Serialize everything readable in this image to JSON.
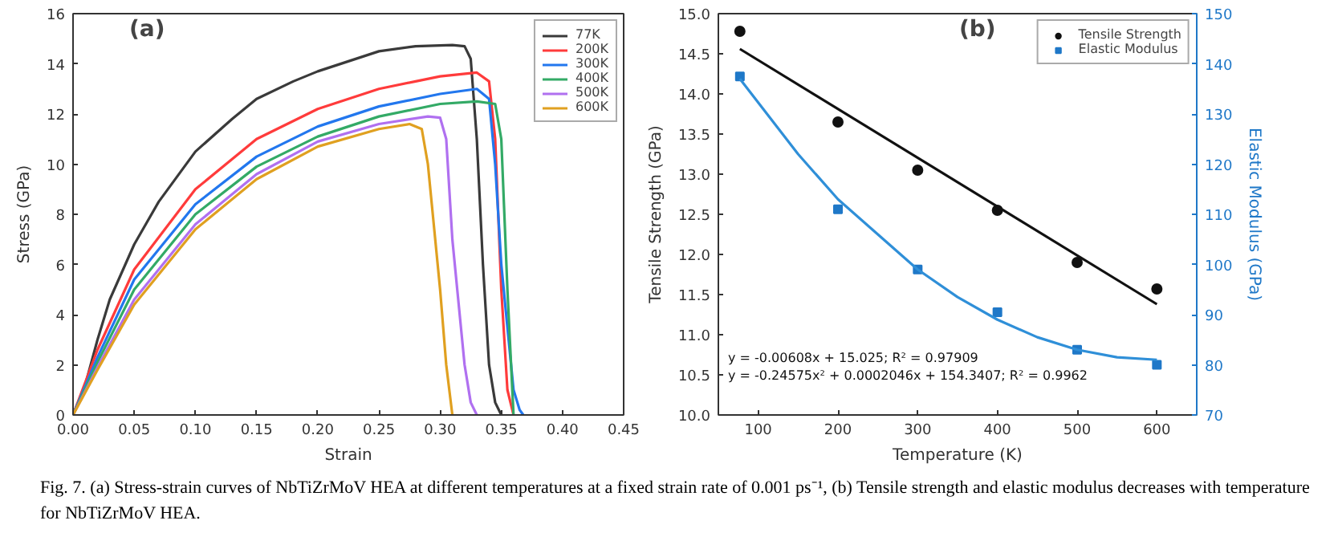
{
  "chart_data": [
    {
      "type": "line",
      "title": "(a)",
      "xlabel": "Strain",
      "ylabel": "Stress (GPa)",
      "xlim": [
        0,
        0.45
      ],
      "ylim": [
        0,
        16
      ],
      "xticks": [
        {
          "value": 0,
          "label": "0.00"
        },
        {
          "value": 0.05,
          "label": "0.05"
        },
        {
          "value": 0.1,
          "label": "0.10"
        },
        {
          "value": 0.15,
          "label": "0.15"
        },
        {
          "value": 0.2,
          "label": "0.20"
        },
        {
          "value": 0.25,
          "label": "0.25"
        },
        {
          "value": 0.3,
          "label": "0.30"
        },
        {
          "value": 0.35,
          "label": "0.35"
        },
        {
          "value": 0.4,
          "label": "0.40"
        },
        {
          "value": 0.45,
          "label": "0.45"
        }
      ],
      "yticks": [
        0,
        2,
        4,
        6,
        8,
        10,
        12,
        14,
        16
      ],
      "grid": false,
      "legend": "top right",
      "line_style": "solid",
      "marker": "none",
      "series": [
        {
          "name": "77K",
          "color": "#3a3a3a",
          "x": [
            0,
            0.01,
            0.02,
            0.03,
            0.05,
            0.07,
            0.1,
            0.13,
            0.15,
            0.18,
            0.2,
            0.25,
            0.28,
            0.31,
            0.32,
            0.325,
            0.33,
            0.335,
            0.34,
            0.345,
            0.35
          ],
          "values": [
            0,
            1.2,
            3.0,
            4.6,
            6.8,
            8.5,
            10.5,
            11.8,
            12.6,
            13.3,
            13.7,
            14.5,
            14.7,
            14.75,
            14.7,
            14.2,
            11,
            6,
            2,
            0.5,
            0
          ]
        },
        {
          "name": "200K",
          "color": "#ff3b3b",
          "x": [
            0,
            0.02,
            0.05,
            0.1,
            0.15,
            0.2,
            0.25,
            0.28,
            0.3,
            0.33,
            0.34,
            0.345,
            0.35,
            0.355,
            0.36
          ],
          "values": [
            0,
            2.6,
            5.8,
            9.0,
            11,
            12.2,
            13.0,
            13.3,
            13.5,
            13.65,
            13.3,
            11,
            5,
            1,
            0
          ]
        },
        {
          "name": "300K",
          "color": "#2277ee",
          "x": [
            0,
            0.02,
            0.05,
            0.1,
            0.15,
            0.2,
            0.25,
            0.3,
            0.33,
            0.34,
            0.345,
            0.35,
            0.36,
            0.365,
            0.368
          ],
          "values": [
            0,
            2.3,
            5.4,
            8.4,
            10.3,
            11.5,
            12.3,
            12.8,
            13.0,
            12.6,
            10,
            6,
            1,
            0.2,
            0
          ]
        },
        {
          "name": "400K",
          "color": "#33aa66",
          "x": [
            0,
            0.02,
            0.05,
            0.1,
            0.15,
            0.2,
            0.25,
            0.3,
            0.33,
            0.345,
            0.35,
            0.355,
            0.36
          ],
          "values": [
            0,
            2.1,
            5.0,
            8.0,
            9.9,
            11.1,
            11.9,
            12.4,
            12.5,
            12.4,
            11,
            5,
            0
          ]
        },
        {
          "name": "500K",
          "color": "#b070f0",
          "x": [
            0,
            0.02,
            0.05,
            0.1,
            0.15,
            0.2,
            0.25,
            0.29,
            0.3,
            0.305,
            0.31,
            0.32,
            0.325,
            0.33
          ],
          "values": [
            0,
            1.9,
            4.6,
            7.6,
            9.6,
            10.9,
            11.6,
            11.9,
            11.85,
            11,
            7,
            2,
            0.5,
            0
          ]
        },
        {
          "name": "600K",
          "color": "#e0a020",
          "x": [
            0,
            0.02,
            0.05,
            0.1,
            0.15,
            0.2,
            0.25,
            0.275,
            0.285,
            0.29,
            0.3,
            0.305,
            0.31
          ],
          "values": [
            0,
            1.8,
            4.4,
            7.4,
            9.4,
            10.7,
            11.4,
            11.6,
            11.4,
            10,
            5,
            2,
            0
          ]
        }
      ]
    },
    {
      "type": "scatter",
      "title": "(b)",
      "xlabel": "Temperature (K)",
      "ylabel": "Tensile Strength (GPa)",
      "y2label": "Elastic Modulus (GPa)",
      "xlim": [
        50,
        650
      ],
      "xticks": [
        100,
        200,
        300,
        400,
        500,
        600
      ],
      "ylim": [
        10,
        15
      ],
      "yticks": [
        {
          "value": 10,
          "label": "10.0"
        },
        {
          "value": 10.5,
          "label": "10.5"
        },
        {
          "value": 11,
          "label": "11.0"
        },
        {
          "value": 11.5,
          "label": "11.5"
        },
        {
          "value": 12,
          "label": "12.0"
        },
        {
          "value": 12.5,
          "label": "12.5"
        },
        {
          "value": 13,
          "label": "13.0"
        },
        {
          "value": 13.5,
          "label": "13.5"
        },
        {
          "value": 14,
          "label": "14.0"
        },
        {
          "value": 14.5,
          "label": "14.5"
        },
        {
          "value": 15,
          "label": "15.0"
        }
      ],
      "y2lim": [
        70,
        150
      ],
      "y2ticks": [
        70,
        80,
        90,
        100,
        110,
        120,
        130,
        140,
        150
      ],
      "grid": false,
      "legend": "top right",
      "annotations": [
        "y = -0.00608x + 15.025; R² = 0.97909",
        "y = -0.24575x² + 0.0002046x + 154.3407; R² = 0.9962",
        "Fig. 7. (a) Stress-strain curves of NbTiZrMoV HEA at different temperatures at a fixed strain rate of 0.001 ps⁻¹, (b) Tensile strength and elastic modulus decreases with temperature for NbTiZrMoV HEA."
      ],
      "series": [
        {
          "name": "Tensile Strength",
          "type": "scatter",
          "marker": "circle",
          "color": "#111111",
          "x": [
            77,
            200,
            300,
            400,
            500,
            600
          ],
          "values": [
            14.78,
            13.65,
            13.05,
            12.55,
            11.9,
            11.57
          ]
        },
        {
          "name": "Elastic Modulus",
          "type": "scatter",
          "marker": "square",
          "axis": "y2",
          "color": "#1f78c8",
          "x": [
            77,
            200,
            300,
            400,
            500,
            600
          ],
          "values": [
            137.5,
            111,
            99,
            90.5,
            83,
            80
          ]
        },
        {
          "type": "line",
          "color": "#111111",
          "x": [
            77,
            600
          ],
          "values": [
            14.56,
            11.38
          ]
        },
        {
          "type": "line",
          "axis": "y2",
          "color": "#2f8fd8",
          "x": [
            77,
            150,
            200,
            250,
            300,
            350,
            400,
            450,
            500,
            550,
            600
          ],
          "values": [
            137,
            122,
            113,
            106,
            99,
            93.5,
            89,
            85.5,
            83,
            81.5,
            81
          ]
        }
      ]
    }
  ]
}
